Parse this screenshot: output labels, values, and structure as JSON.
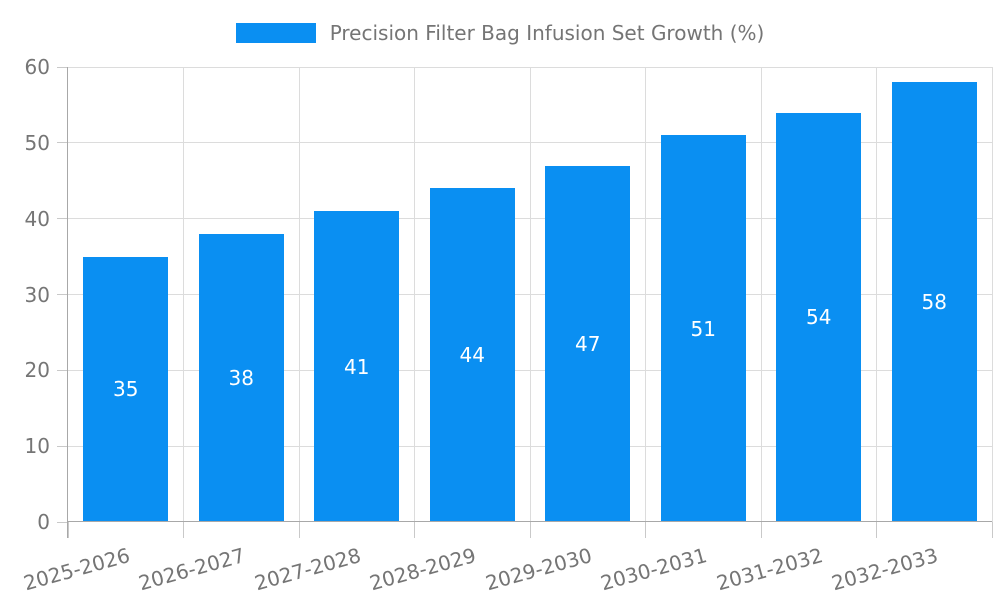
{
  "legend": {
    "series_label": "Precision Filter Bag Infusion Set Growth (%)"
  },
  "chart_data": {
    "type": "bar",
    "title": "Precision Filter Bag Infusion Set Growth (%)",
    "categories": [
      "2025-2026",
      "2026-2027",
      "2027-2028",
      "2028-2029",
      "2029-2030",
      "2030-2031",
      "2031-2032",
      "2032-2033"
    ],
    "values": [
      35,
      38,
      41,
      44,
      47,
      51,
      54,
      58
    ],
    "xlabel": "",
    "ylabel": "",
    "ylim": [
      0,
      60
    ],
    "yticks": [
      0,
      10,
      20,
      30,
      40,
      50,
      60
    ],
    "grid": true,
    "legend_position": "top",
    "value_labels": "inside-center"
  },
  "colors": {
    "bar": "#0a8ff2",
    "text": "#757575",
    "grid": "#dcdcdc",
    "axis": "#a8a8a8",
    "tick": "#c9c9c9",
    "value_text": "#ffffff",
    "background": "#ffffff"
  }
}
